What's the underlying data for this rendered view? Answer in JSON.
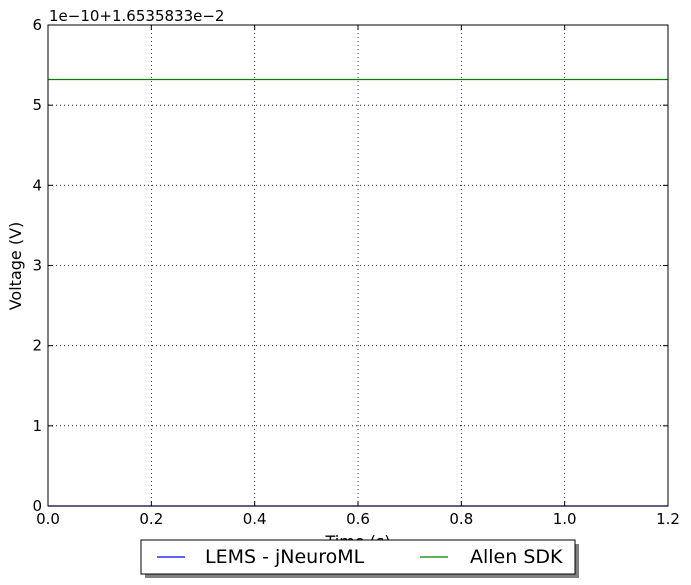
{
  "chart_data": {
    "type": "line",
    "title": "",
    "offset_label": "1e−10+1.6535833e−2",
    "xlabel": "Time (s)",
    "ylabel": "Voltage (V)",
    "xlim": [
      0.0,
      1.2
    ],
    "ylim": [
      0,
      6
    ],
    "x_ticks": [
      "0.0",
      "0.2",
      "0.4",
      "0.6",
      "0.8",
      "1.0",
      "1.2"
    ],
    "y_ticks": [
      "0",
      "1",
      "2",
      "3",
      "4",
      "5",
      "6"
    ],
    "grid": true,
    "legend": {
      "placement": "bottom-center, below axes, two columns",
      "entries": [
        "LEMS - jNeuroML",
        "Allen SDK"
      ]
    },
    "series": [
      {
        "name": "LEMS - jNeuroML",
        "color": "#0000ff",
        "x": [
          0.0,
          1.2
        ],
        "y": [
          0.0,
          0.0
        ]
      },
      {
        "name": "Allen SDK",
        "color": "#008000",
        "x": [
          0.0,
          1.2
        ],
        "y": [
          5.32,
          5.32
        ]
      }
    ]
  }
}
